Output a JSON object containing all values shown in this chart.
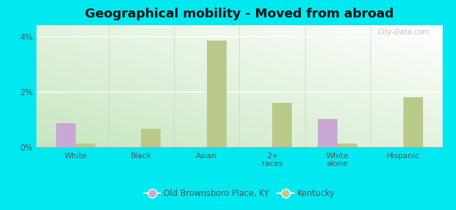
{
  "title": "Geographical mobility - Moved from abroad",
  "categories": [
    "White",
    "Black",
    "Asian",
    "2+\nraces",
    "White\nalone",
    "Hispanic"
  ],
  "series1_label": "Old Brownsboro Place, KY",
  "series2_label": "Kentucky",
  "series1_values": [
    0.85,
    0.0,
    0.0,
    0.0,
    1.0,
    0.0
  ],
  "series2_values": [
    0.12,
    0.65,
    3.85,
    1.6,
    0.12,
    1.8
  ],
  "series1_color": "#c9a8d4",
  "series2_color": "#b8c98a",
  "bar_width": 0.3,
  "ylim": [
    0,
    4.4
  ],
  "yticks": [
    0,
    2,
    4
  ],
  "ytick_labels": [
    "0%",
    "2%",
    "4%"
  ],
  "background_color": "#00e8f0",
  "title_fontsize": 13,
  "watermark": "City-Data.com"
}
